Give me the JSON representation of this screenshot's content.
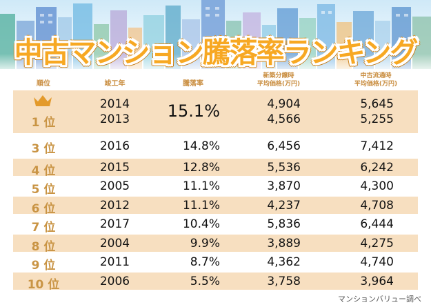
{
  "title": "中古マンション騰落率ランキング",
  "headers": {
    "rank": "順位",
    "year": "竣工年",
    "rate": "騰落率",
    "new_price": [
      "新築分譲時",
      "平均価格(万円)"
    ],
    "used_price": [
      "中古流通時",
      "平均価格(万円)"
    ]
  },
  "top": {
    "rank": "1 位",
    "years": [
      "2014",
      "2013"
    ],
    "rate": "15.1%",
    "new_prices": [
      "4,904",
      "4,566"
    ],
    "used_prices": [
      "5,645",
      "5,255"
    ]
  },
  "rows": [
    {
      "rank": "3 位",
      "year": "2016",
      "rate": "14.8%",
      "new_price": "6,456",
      "used_price": "7,412"
    },
    {
      "rank": "4 位",
      "year": "2015",
      "rate": "12.8%",
      "new_price": "5,536",
      "used_price": "6,242"
    },
    {
      "rank": "5 位",
      "year": "2005",
      "rate": "11.1%",
      "new_price": "3,870",
      "used_price": "4,300"
    },
    {
      "rank": "6 位",
      "year": "2012",
      "rate": "11.1%",
      "new_price": "4,237",
      "used_price": "4,708"
    },
    {
      "rank": "7 位",
      "year": "2017",
      "rate": "10.4%",
      "new_price": "5,836",
      "used_price": "6,444"
    },
    {
      "rank": "8 位",
      "year": "2004",
      "rate": "9.9%",
      "new_price": "3,889",
      "used_price": "4,275"
    },
    {
      "rank": "9 位",
      "year": "2011",
      "rate": "8.7%",
      "new_price": "4,362",
      "used_price": "4,740"
    },
    {
      "rank": "10 位",
      "year": "2006",
      "rate": "5.5%",
      "new_price": "3,758",
      "used_price": "3,964"
    }
  ],
  "footer": "マンションバリュー調べ",
  "colors": {
    "accent": "#f7a823",
    "row_tan": "#f7dfc0",
    "header_text": "#c98d3f",
    "rank_text": "#c99444"
  }
}
